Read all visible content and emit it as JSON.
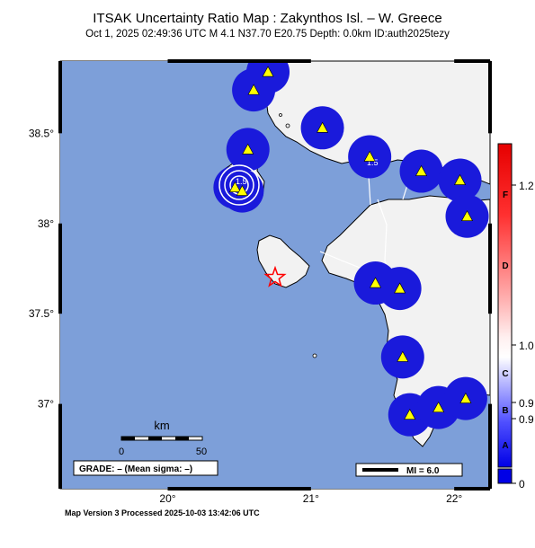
{
  "title": "ITSAK Uncertainty Ratio Map : Zakynthos Isl. – W. Greece",
  "subtitle": "Oct  1, 2025 02:49:36 UTC   M 4.1   N37.70 E20.75   Depth: 0.0km   ID:auth2025tezy",
  "footer": "Map Version 3 Processed 2025-10-03 13:42:06 UTC",
  "map": {
    "lat_ticks": [
      {
        "value": 38.5,
        "label": "38.5°"
      },
      {
        "value": 38.0,
        "label": "38°"
      },
      {
        "value": 37.5,
        "label": "37.5°"
      },
      {
        "value": 37.0,
        "label": "37°"
      }
    ],
    "lon_ticks": [
      {
        "value": 20,
        "label": "20°"
      },
      {
        "value": 21,
        "label": "21°"
      },
      {
        "value": 22,
        "label": "22°"
      }
    ],
    "lon_range": [
      19.25,
      22.25
    ],
    "lat_range": [
      36.53,
      38.9
    ],
    "epicenter": {
      "lat": 37.7,
      "lon": 20.75
    },
    "stations": [
      {
        "lon": 20.7,
        "lat": 38.84
      },
      {
        "lon": 20.6,
        "lat": 38.74
      },
      {
        "lon": 20.56,
        "lat": 38.41
      },
      {
        "lon": 20.47,
        "lat": 38.2
      },
      {
        "lon": 20.52,
        "lat": 38.18
      },
      {
        "lon": 21.08,
        "lat": 38.53
      },
      {
        "lon": 21.41,
        "lat": 38.37
      },
      {
        "lon": 21.77,
        "lat": 38.29
      },
      {
        "lon": 22.04,
        "lat": 38.24
      },
      {
        "lon": 22.09,
        "lat": 38.04
      },
      {
        "lon": 21.45,
        "lat": 37.67
      },
      {
        "lon": 21.62,
        "lat": 37.64
      },
      {
        "lon": 21.64,
        "lat": 37.26
      },
      {
        "lon": 21.69,
        "lat": 36.94
      },
      {
        "lon": 21.89,
        "lat": 36.98
      },
      {
        "lon": 22.08,
        "lat": 37.03
      }
    ],
    "contour_label": "1.5",
    "scale": {
      "unit": "km",
      "ticks": [
        "0",
        "50"
      ]
    },
    "grade_text": "GRADE: – (Mean sigma: –)",
    "mi_text": "MI = 6.0"
  },
  "colorbar": {
    "letters": [
      "F",
      "D",
      "C",
      "B",
      "A"
    ],
    "values": [
      "1.2",
      "1.0",
      "0.9",
      "0.9",
      "0"
    ]
  },
  "colors": {
    "water": "#7d9fd9",
    "land": "#f2f2f2",
    "uncertainty": "#1a1adb",
    "station": "#ffff00",
    "epicenter": "#ff0000"
  }
}
